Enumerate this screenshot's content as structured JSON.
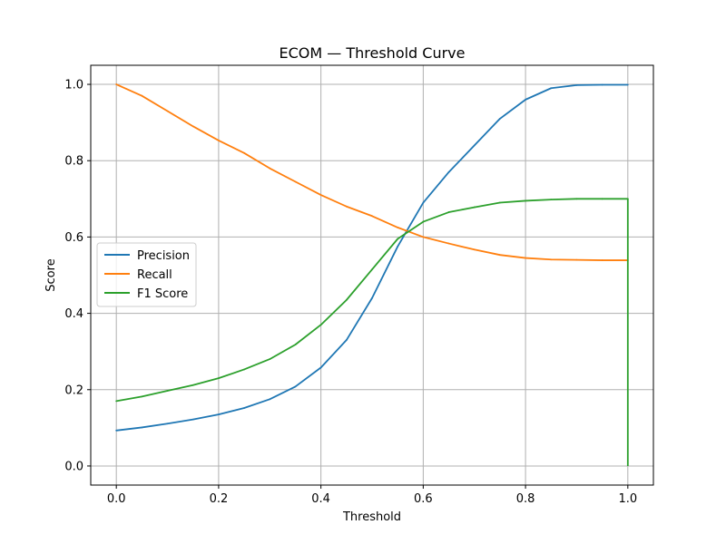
{
  "chart_data": {
    "type": "line",
    "title": "ECOM — Threshold Curve",
    "xlabel": "Threshold",
    "ylabel": "Score",
    "xlim": [
      -0.05,
      1.05
    ],
    "ylim": [
      -0.05,
      1.05
    ],
    "xticks": [
      0.0,
      0.2,
      0.4,
      0.6,
      0.8,
      1.0
    ],
    "xtick_labels": [
      "0.0",
      "0.2",
      "0.4",
      "0.6",
      "0.8",
      "1.0"
    ],
    "yticks": [
      0.0,
      0.2,
      0.4,
      0.6,
      0.8,
      1.0
    ],
    "ytick_labels": [
      "0.0",
      "0.2",
      "0.4",
      "0.6",
      "0.8",
      "1.0"
    ],
    "grid": true,
    "legend_position": "center-left",
    "x": [
      0.0,
      0.05,
      0.1,
      0.15,
      0.2,
      0.25,
      0.3,
      0.35,
      0.4,
      0.45,
      0.5,
      0.55,
      0.6,
      0.65,
      0.7,
      0.75,
      0.8,
      0.85,
      0.9,
      0.95,
      1.0
    ],
    "series": [
      {
        "name": "Precision",
        "color": "#1f77b4",
        "values": [
          0.093,
          0.101,
          0.111,
          0.122,
          0.135,
          0.152,
          0.175,
          0.208,
          0.258,
          0.33,
          0.44,
          0.575,
          0.69,
          0.77,
          0.84,
          0.91,
          0.96,
          0.99,
          0.998,
          0.999,
          0.999
        ]
      },
      {
        "name": "Recall",
        "color": "#ff7f0e",
        "values": [
          1.0,
          0.97,
          0.93,
          0.89,
          0.853,
          0.82,
          0.78,
          0.745,
          0.71,
          0.68,
          0.655,
          0.625,
          0.6,
          0.583,
          0.567,
          0.553,
          0.545,
          0.541,
          0.54,
          0.539,
          0.539
        ]
      },
      {
        "name": "F1 Score",
        "color": "#2ca02c",
        "values": [
          0.17,
          0.182,
          0.197,
          0.212,
          0.23,
          0.253,
          0.28,
          0.318,
          0.37,
          0.435,
          0.515,
          0.595,
          0.64,
          0.665,
          0.678,
          0.69,
          0.695,
          0.698,
          0.7,
          0.7,
          0.7
        ]
      }
    ],
    "f1_final_drop": [
      1.0,
      0.0
    ]
  }
}
